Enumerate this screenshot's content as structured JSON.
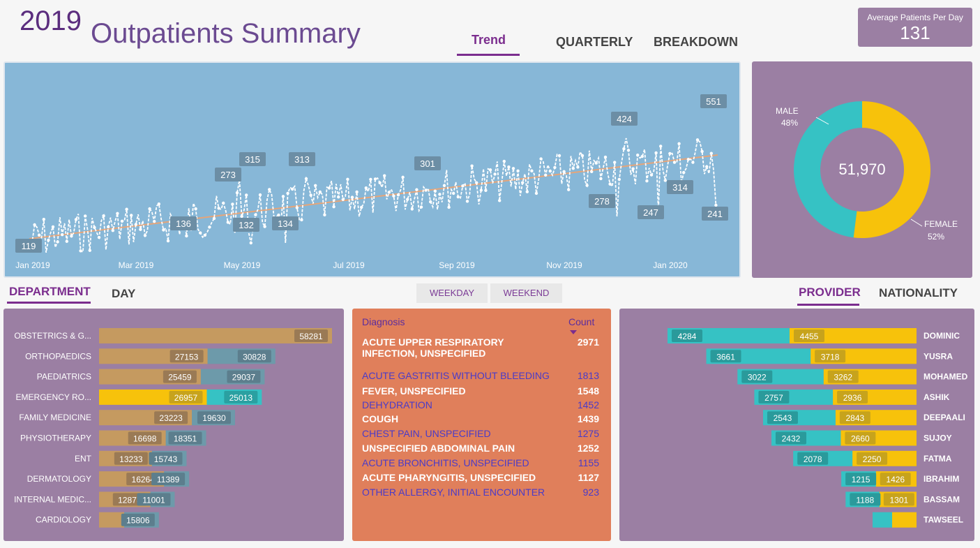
{
  "header": {
    "year": "2019",
    "title": "Outpatients Summary",
    "tabs": [
      "Trend",
      "QUARTERLY",
      "BREAKDOWN"
    ],
    "active_tab": "Trend",
    "avg_label": "Average Patients Per Day",
    "avg_value": "131"
  },
  "trend": {
    "x_labels": [
      "Jan 2019",
      "Mar 2019",
      "May 2019",
      "Jul 2019",
      "Sep 2019",
      "Nov 2019",
      "Jan 2020"
    ],
    "callouts": [
      "119",
      "136",
      "273",
      "315",
      "132",
      "134",
      "313",
      "301",
      "424",
      "278",
      "247",
      "314",
      "551",
      "241"
    ],
    "line_color": "#ffffff",
    "trendline_color": "#e5a57a"
  },
  "gender": {
    "total": "51,970",
    "male_label": "MALE",
    "male_pct": "48%",
    "female_label": "FEMALE",
    "female_pct": "52%",
    "male_value": 48,
    "female_value": 52,
    "male_color": "#36c2c4",
    "female_color": "#f7c20b"
  },
  "department": {
    "tabs": [
      "DEPARTMENT",
      "DAY"
    ],
    "filters": [
      "WEEKDAY",
      "WEEKEND"
    ],
    "rows": [
      {
        "name": "OBSTETRICS & G...",
        "female": "58281",
        "male": ""
      },
      {
        "name": "ORTHOPAEDICS",
        "female": "27153",
        "male": "30828"
      },
      {
        "name": "PAEDIATRICS",
        "female": "25459",
        "male": "29037"
      },
      {
        "name": "EMERGENCY RO...",
        "female": "26957",
        "male": "25013"
      },
      {
        "name": "FAMILY MEDICINE",
        "female": "23223",
        "male": "19630"
      },
      {
        "name": "PHYSIOTHERAPY",
        "female": "16698",
        "male": "18351"
      },
      {
        "name": "ENT",
        "female": "13233",
        "male": "15743"
      },
      {
        "name": "DERMATOLOGY",
        "female": "16264",
        "male": "11389"
      },
      {
        "name": "INTERNAL MEDIC...",
        "female": "12875",
        "male": "11001"
      },
      {
        "name": "CARDIOLOGY",
        "female": "",
        "male": "15806"
      }
    ]
  },
  "diagnosis": {
    "header_name": "Diagnosis",
    "header_count": "Count",
    "rows": [
      {
        "name": "ACUTE UPPER RESPIRATORY INFECTION, UNSPECIFIED",
        "count": "2971"
      },
      {
        "name": "ACUTE GASTRITIS WITHOUT BLEEDING",
        "count": "1813"
      },
      {
        "name": "FEVER, UNSPECIFIED",
        "count": "1548"
      },
      {
        "name": "DEHYDRATION",
        "count": "1452"
      },
      {
        "name": "COUGH",
        "count": "1439"
      },
      {
        "name": "CHEST PAIN, UNSPECIFIED",
        "count": "1275"
      },
      {
        "name": "UNSPECIFIED ABDOMINAL PAIN",
        "count": "1252"
      },
      {
        "name": "ACUTE BRONCHITIS, UNSPECIFIED",
        "count": "1155"
      },
      {
        "name": "ACUTE PHARYNGITIS, UNSPECIFIED",
        "count": "1127"
      },
      {
        "name": "OTHER ALLERGY, INITIAL ENCOUNTER",
        "count": "923"
      }
    ]
  },
  "provider": {
    "tabs": [
      "PROVIDER",
      "NATIONALITY"
    ],
    "rows": [
      {
        "name": "DOMINIC",
        "male": "4284",
        "female": "4455"
      },
      {
        "name": "YUSRA",
        "male": "3661",
        "female": "3718"
      },
      {
        "name": "MOHAMED",
        "male": "3022",
        "female": "3262"
      },
      {
        "name": "ASHIK",
        "male": "2757",
        "female": "2936"
      },
      {
        "name": "DEEPAALI",
        "male": "2543",
        "female": "2843"
      },
      {
        "name": "SUJOY",
        "male": "2432",
        "female": "2660"
      },
      {
        "name": "FATMA",
        "male": "2078",
        "female": "2250"
      },
      {
        "name": "IBRAHIM",
        "male": "1215",
        "female": "1426"
      },
      {
        "name": "BASSAM",
        "male": "1188",
        "female": "1301"
      },
      {
        "name": "TAWSEEL",
        "male": "",
        "female": ""
      }
    ]
  }
}
